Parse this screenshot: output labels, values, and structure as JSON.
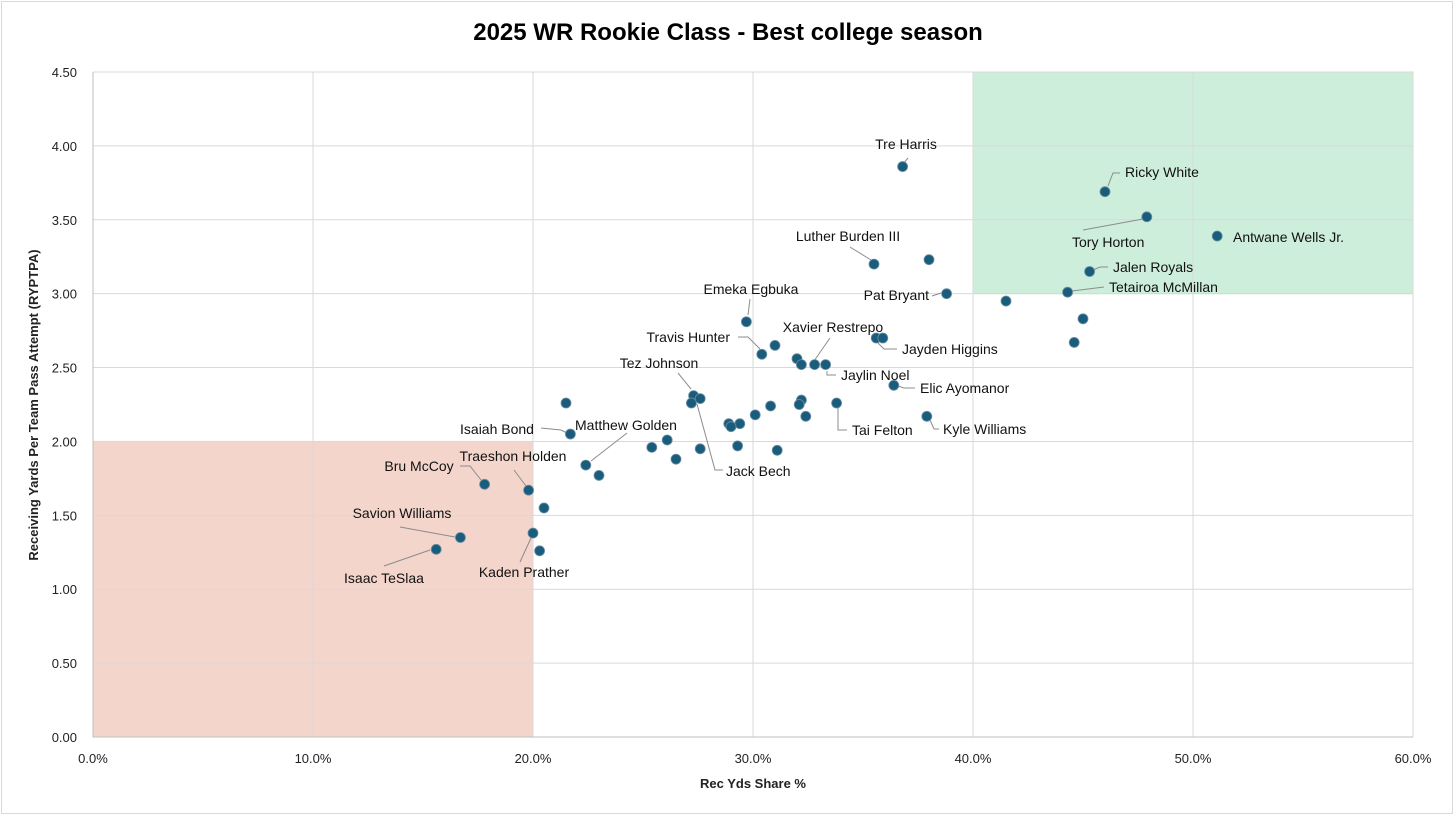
{
  "chart_data": {
    "type": "scatter",
    "title": "2025 WR Rookie Class - Best college season",
    "xlabel": "Rec Yds Share %",
    "ylabel": "Receiving Yards Per Team Pass Attempt (RYPTPA)",
    "xlim": [
      0,
      0.6
    ],
    "ylim": [
      0,
      4.5
    ],
    "x_ticks": [
      "0.0%",
      "10.0%",
      "20.0%",
      "30.0%",
      "40.0%",
      "50.0%",
      "60.0%"
    ],
    "y_ticks": [
      "0.00",
      "0.50",
      "1.00",
      "1.50",
      "2.00",
      "2.50",
      "3.00",
      "3.50",
      "4.00",
      "4.50"
    ],
    "grid": true,
    "colors": {
      "point": "#1a5c7c",
      "good_zone": "#cdeedb",
      "bad_zone": "#f4d5cb"
    },
    "zones": [
      {
        "name": "top-right",
        "x": [
          0.4,
          0.6
        ],
        "y": [
          3.0,
          4.5
        ],
        "color": "#cdeedb"
      },
      {
        "name": "bottom-left",
        "x": [
          0.0,
          0.2
        ],
        "y": [
          0.0,
          2.0
        ],
        "color": "#f4d5cb"
      }
    ],
    "points": [
      {
        "x": 0.368,
        "y": 3.86,
        "label": "Tre Harris"
      },
      {
        "x": 0.46,
        "y": 3.69,
        "label": "Ricky White"
      },
      {
        "x": 0.479,
        "y": 3.52,
        "label": "Tory Horton"
      },
      {
        "x": 0.511,
        "y": 3.39,
        "label": "Antwane Wells Jr."
      },
      {
        "x": 0.355,
        "y": 3.2,
        "label": "Luther Burden III"
      },
      {
        "x": 0.38,
        "y": 3.23,
        "label": ""
      },
      {
        "x": 0.453,
        "y": 3.15,
        "label": "Jalen Royals"
      },
      {
        "x": 0.443,
        "y": 3.01,
        "label": "Tetairoa McMillan"
      },
      {
        "x": 0.388,
        "y": 3.0,
        "label": "Pat Bryant"
      },
      {
        "x": 0.415,
        "y": 2.95,
        "label": ""
      },
      {
        "x": 0.45,
        "y": 2.83,
        "label": ""
      },
      {
        "x": 0.446,
        "y": 2.67,
        "label": ""
      },
      {
        "x": 0.297,
        "y": 2.81,
        "label": "Emeka Egbuka"
      },
      {
        "x": 0.31,
        "y": 2.65,
        "label": ""
      },
      {
        "x": 0.304,
        "y": 2.59,
        "label": "Travis Hunter"
      },
      {
        "x": 0.356,
        "y": 2.7,
        "label": "Jayden Higgins"
      },
      {
        "x": 0.359,
        "y": 2.7,
        "label": ""
      },
      {
        "x": 0.328,
        "y": 2.52,
        "label": "Xavier Restrepo"
      },
      {
        "x": 0.32,
        "y": 2.56,
        "label": ""
      },
      {
        "x": 0.322,
        "y": 2.52,
        "label": ""
      },
      {
        "x": 0.333,
        "y": 2.52,
        "label": "Jaylin Noel"
      },
      {
        "x": 0.364,
        "y": 2.38,
        "label": "Elic Ayomanor"
      },
      {
        "x": 0.273,
        "y": 2.31,
        "label": "Tez Johnson"
      },
      {
        "x": 0.276,
        "y": 2.29,
        "label": "Jack Bech"
      },
      {
        "x": 0.272,
        "y": 2.26,
        "label": ""
      },
      {
        "x": 0.322,
        "y": 2.28,
        "label": ""
      },
      {
        "x": 0.321,
        "y": 2.25,
        "label": ""
      },
      {
        "x": 0.308,
        "y": 2.24,
        "label": ""
      },
      {
        "x": 0.338,
        "y": 2.26,
        "label": "Tai Felton"
      },
      {
        "x": 0.215,
        "y": 2.26,
        "label": ""
      },
      {
        "x": 0.301,
        "y": 2.18,
        "label": ""
      },
      {
        "x": 0.324,
        "y": 2.17,
        "label": ""
      },
      {
        "x": 0.379,
        "y": 2.17,
        "label": "Kyle Williams"
      },
      {
        "x": 0.217,
        "y": 2.05,
        "label": "Isaiah Bond"
      },
      {
        "x": 0.289,
        "y": 2.12,
        "label": ""
      },
      {
        "x": 0.294,
        "y": 2.12,
        "label": ""
      },
      {
        "x": 0.29,
        "y": 2.1,
        "label": ""
      },
      {
        "x": 0.261,
        "y": 2.01,
        "label": ""
      },
      {
        "x": 0.254,
        "y": 1.96,
        "label": ""
      },
      {
        "x": 0.276,
        "y": 1.95,
        "label": ""
      },
      {
        "x": 0.293,
        "y": 1.97,
        "label": ""
      },
      {
        "x": 0.311,
        "y": 1.94,
        "label": ""
      },
      {
        "x": 0.224,
        "y": 1.84,
        "label": "Matthew Golden"
      },
      {
        "x": 0.265,
        "y": 1.88,
        "label": ""
      },
      {
        "x": 0.23,
        "y": 1.77,
        "label": ""
      },
      {
        "x": 0.178,
        "y": 1.71,
        "label": "Bru McCoy"
      },
      {
        "x": 0.198,
        "y": 1.67,
        "label": "Traeshon Holden"
      },
      {
        "x": 0.205,
        "y": 1.55,
        "label": ""
      },
      {
        "x": 0.167,
        "y": 1.35,
        "label": "Savion Williams"
      },
      {
        "x": 0.2,
        "y": 1.38,
        "label": "Kaden Prather"
      },
      {
        "x": 0.203,
        "y": 1.26,
        "label": ""
      },
      {
        "x": 0.156,
        "y": 1.27,
        "label": "Isaac TeSlaa"
      }
    ]
  }
}
